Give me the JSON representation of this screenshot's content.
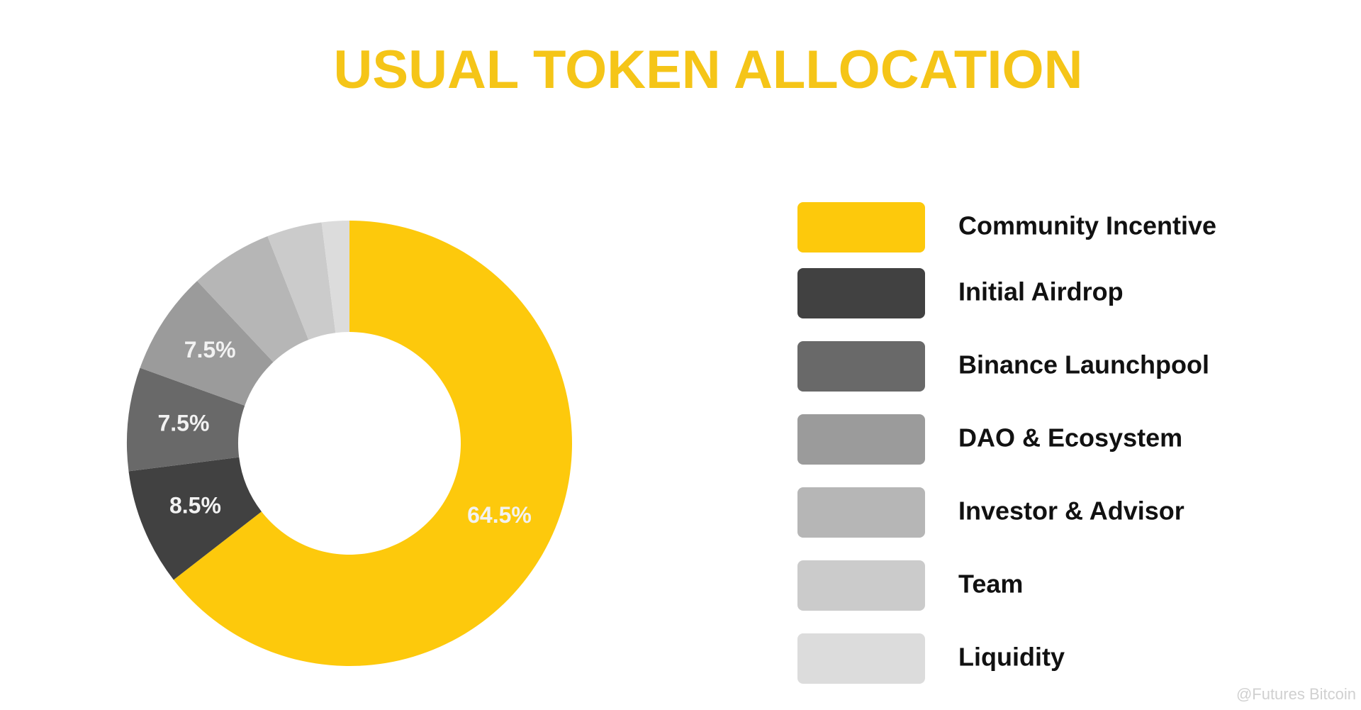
{
  "chart_data": {
    "type": "donut",
    "title": "USUAL TOKEN ALLOCATION",
    "categories": [
      "Community Incentive",
      "Initial Airdrop",
      "Binance Launchpool",
      "DAO & Ecosystem",
      "Investor & Advisor",
      "Team",
      "Liquidity"
    ],
    "values": [
      64.5,
      8.5,
      7.5,
      7.5,
      6,
      4,
      2
    ],
    "value_labels": [
      "64.5%",
      "8.5%",
      "7.5%",
      "7.5%",
      null,
      null,
      null
    ],
    "colors": [
      "#fdc90c",
      "#414141",
      "#696969",
      "#9b9b9b",
      "#b6b6b6",
      "#cbcbcb",
      "#dcdcdc"
    ],
    "title_color": "#f5c518",
    "legend": "right",
    "watermark": "@Futures Bitcoin"
  }
}
